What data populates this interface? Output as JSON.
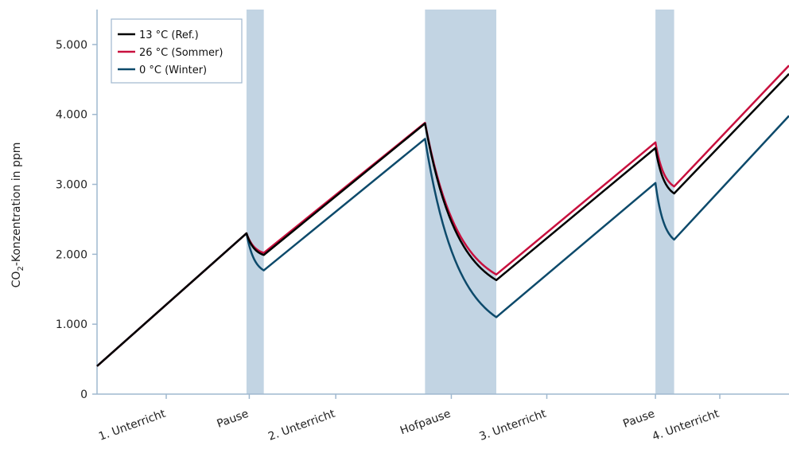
{
  "chart_data": {
    "type": "line",
    "ylabel_main": "CO",
    "ylabel_sub": "2",
    "ylabel_rest": "-Konzentration in ppm",
    "ylim": [
      0,
      5500
    ],
    "y_ticks": [
      {
        "value": 0,
        "label": "0"
      },
      {
        "value": 1000,
        "label": "1.000"
      },
      {
        "value": 2000,
        "label": "2.000"
      },
      {
        "value": 3000,
        "label": "3.000"
      },
      {
        "value": 4000,
        "label": "4.000"
      },
      {
        "value": 5000,
        "label": "5.000"
      }
    ],
    "x_range": [
      0,
      1000
    ],
    "categories": [
      {
        "label": "1. Unterricht",
        "center": 100
      },
      {
        "label": "Pause",
        "center": 220
      },
      {
        "label": "2. Unterricht",
        "center": 345
      },
      {
        "label": "Hofpause",
        "center": 512
      },
      {
        "label": "3. Unterricht",
        "center": 650
      },
      {
        "label": "Pause",
        "center": 807
      },
      {
        "label": "4. Unterricht",
        "center": 900
      }
    ],
    "category_ticks": [
      100,
      220,
      345,
      512,
      650,
      807,
      900
    ],
    "pauses": [
      {
        "start": 216,
        "end": 241
      },
      {
        "start": 474,
        "end": 577
      },
      {
        "start": 807,
        "end": 834
      }
    ],
    "legend_position": "top-left",
    "series": [
      {
        "name": "13 °C (Ref.)",
        "color": "#000000",
        "pause_shape": "exp",
        "values": [
          [
            0,
            400
          ],
          [
            216,
            2300
          ],
          [
            241,
            1990
          ],
          [
            474,
            3870
          ],
          [
            577,
            1630
          ],
          [
            807,
            3520
          ],
          [
            834,
            2870
          ],
          [
            1000,
            4580
          ]
        ]
      },
      {
        "name": "26 °C (Sommer)",
        "color": "#c8103e",
        "pause_shape": "exp",
        "values": [
          [
            0,
            400
          ],
          [
            216,
            2300
          ],
          [
            241,
            2020
          ],
          [
            474,
            3880
          ],
          [
            577,
            1710
          ],
          [
            807,
            3600
          ],
          [
            834,
            2970
          ],
          [
            1000,
            4700
          ]
        ]
      },
      {
        "name": "0 °C (Winter)",
        "color": "#0d4a6b",
        "pause_shape": "exp",
        "values": [
          [
            0,
            400
          ],
          [
            216,
            2300
          ],
          [
            241,
            1770
          ],
          [
            474,
            3650
          ],
          [
            577,
            1100
          ],
          [
            807,
            3020
          ],
          [
            834,
            2210
          ],
          [
            1000,
            3980
          ]
        ]
      }
    ],
    "colors": {
      "pause_fill": "#c2d4e3",
      "axis": "#9fb8cf"
    }
  }
}
